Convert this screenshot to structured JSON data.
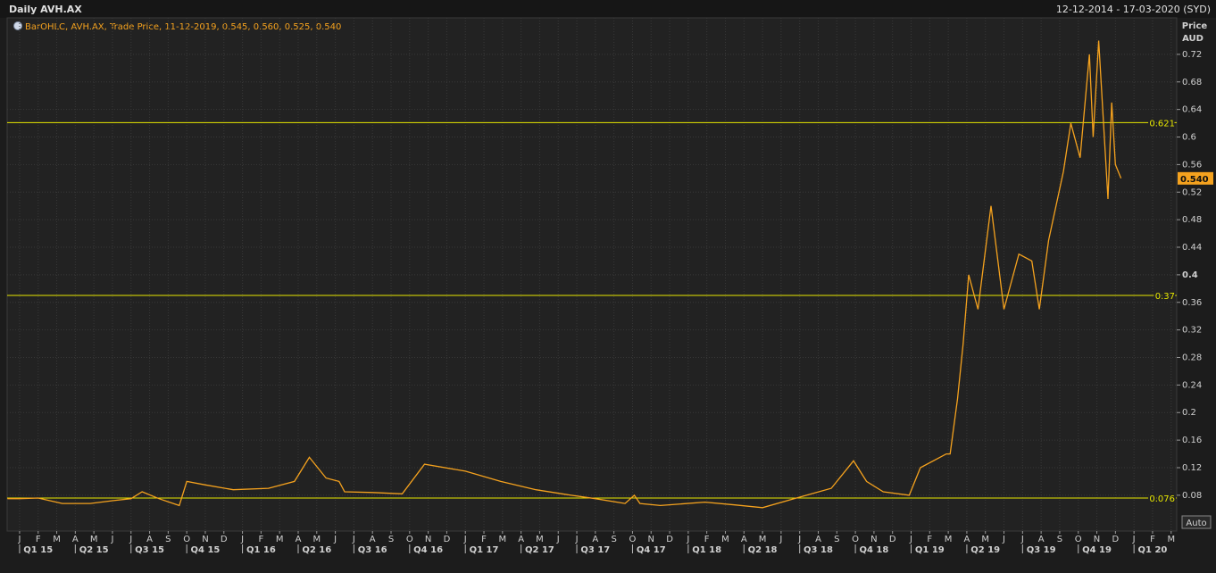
{
  "chart_data": {
    "type": "line",
    "title": "Daily AVH.AX",
    "date_range": "12-12-2014 - 17-03-2020 (SYD)",
    "y_axis_label": [
      "Price",
      "AUD"
    ],
    "series": [
      {
        "name": "BarOHLC, AVH.AX, Trade Price, 11-12-2019, 0.545, 0.560, 0.525, 0.540",
        "color": "#f5a21e",
        "x": [
          -0.65,
          0,
          1,
          2.3,
          3.8,
          5,
          6,
          6.6,
          7.5,
          8.6,
          9,
          10,
          11.5,
          13.4,
          14.8,
          15.6,
          16.5,
          17.2,
          17.5,
          19,
          20.6,
          21.8,
          24,
          25.9,
          27.8,
          29.7,
          31,
          32.6,
          33.1,
          33.4,
          34.5,
          36.9,
          38.5,
          40,
          41.7,
          43.7,
          44.9,
          45.6,
          46.5,
          47.9,
          48.5,
          49.9,
          50.1,
          50.5,
          50.8,
          51.1,
          51.6,
          52.3,
          53,
          53.8,
          54.5,
          54.9,
          55.4,
          56.2,
          56.6,
          57.1,
          57.6,
          57.8,
          58.1,
          58.6,
          58.8,
          59,
          59.3
        ],
        "values": [
          0.075,
          0.075,
          0.076,
          0.068,
          0.068,
          0.072,
          0.075,
          0.085,
          0.075,
          0.065,
          0.1,
          0.095,
          0.088,
          0.09,
          0.1,
          0.135,
          0.105,
          0.1,
          0.085,
          0.084,
          0.082,
          0.125,
          0.115,
          0.1,
          0.088,
          0.08,
          0.075,
          0.068,
          0.08,
          0.068,
          0.065,
          0.07,
          0.066,
          0.062,
          0.075,
          0.09,
          0.13,
          0.1,
          0.085,
          0.08,
          0.12,
          0.14,
          0.14,
          0.22,
          0.3,
          0.4,
          0.35,
          0.5,
          0.35,
          0.43,
          0.42,
          0.35,
          0.45,
          0.55,
          0.62,
          0.57,
          0.72,
          0.6,
          0.74,
          0.51,
          0.65,
          0.56,
          0.54
        ]
      }
    ],
    "last_price": {
      "value": 0.54,
      "label": "0.540"
    },
    "hlines": [
      0.621,
      0.37,
      0.076
    ],
    "xlim": [
      -0.67,
      62.3
    ],
    "ylim": [
      0.028,
      0.773
    ],
    "yticks": [
      0.08,
      0.12,
      0.16,
      0.2,
      0.24,
      0.28,
      0.32,
      0.36,
      0.4,
      0.44,
      0.48,
      0.52,
      0.56,
      0.6,
      0.64,
      0.68,
      0.72
    ],
    "xticks": [
      {
        "value": 0,
        "label": "J"
      },
      {
        "value": 1,
        "label": "F"
      },
      {
        "value": 2,
        "label": "M"
      },
      {
        "value": 3,
        "label": "A"
      },
      {
        "value": 4,
        "label": "M"
      },
      {
        "value": 5,
        "label": "J"
      },
      {
        "value": 6,
        "label": "J"
      },
      {
        "value": 7,
        "label": "A"
      },
      {
        "value": 8,
        "label": "S"
      },
      {
        "value": 9,
        "label": "O"
      },
      {
        "value": 10,
        "label": "N"
      },
      {
        "value": 11,
        "label": "D"
      },
      {
        "value": 12,
        "label": "J"
      },
      {
        "value": 13,
        "label": "F"
      },
      {
        "value": 14,
        "label": "M"
      },
      {
        "value": 15,
        "label": "A"
      },
      {
        "value": 16,
        "label": "M"
      },
      {
        "value": 17,
        "label": "J"
      },
      {
        "value": 18,
        "label": "J"
      },
      {
        "value": 19,
        "label": "A"
      },
      {
        "value": 20,
        "label": "S"
      },
      {
        "value": 21,
        "label": "O"
      },
      {
        "value": 22,
        "label": "N"
      },
      {
        "value": 23,
        "label": "D"
      },
      {
        "value": 24,
        "label": "J"
      },
      {
        "value": 25,
        "label": "F"
      },
      {
        "value": 26,
        "label": "M"
      },
      {
        "value": 27,
        "label": "A"
      },
      {
        "value": 28,
        "label": "M"
      },
      {
        "value": 29,
        "label": "J"
      },
      {
        "value": 30,
        "label": "J"
      },
      {
        "value": 31,
        "label": "A"
      },
      {
        "value": 32,
        "label": "S"
      },
      {
        "value": 33,
        "label": "O"
      },
      {
        "value": 34,
        "label": "N"
      },
      {
        "value": 35,
        "label": "D"
      },
      {
        "value": 36,
        "label": "J"
      },
      {
        "value": 37,
        "label": "F"
      },
      {
        "value": 38,
        "label": "M"
      },
      {
        "value": 39,
        "label": "A"
      },
      {
        "value": 40,
        "label": "M"
      },
      {
        "value": 41,
        "label": "J"
      },
      {
        "value": 42,
        "label": "J"
      },
      {
        "value": 43,
        "label": "A"
      },
      {
        "value": 44,
        "label": "S"
      },
      {
        "value": 45,
        "label": "O"
      },
      {
        "value": 46,
        "label": "N"
      },
      {
        "value": 47,
        "label": "D"
      },
      {
        "value": 48,
        "label": "J"
      },
      {
        "value": 49,
        "label": "F"
      },
      {
        "value": 50,
        "label": "M"
      },
      {
        "value": 51,
        "label": "A"
      },
      {
        "value": 52,
        "label": "M"
      },
      {
        "value": 53,
        "label": "J"
      },
      {
        "value": 54,
        "label": "J"
      },
      {
        "value": 55,
        "label": "A"
      },
      {
        "value": 56,
        "label": "S"
      },
      {
        "value": 57,
        "label": "O"
      },
      {
        "value": 58,
        "label": "N"
      },
      {
        "value": 59,
        "label": "D"
      },
      {
        "value": 60,
        "label": "J"
      },
      {
        "value": 61,
        "label": "F"
      },
      {
        "value": 62,
        "label": "M"
      }
    ],
    "quarters": [
      {
        "value": 0,
        "label": "Q1 15"
      },
      {
        "value": 3,
        "label": "Q2 15"
      },
      {
        "value": 6,
        "label": "Q3 15"
      },
      {
        "value": 9,
        "label": "Q4 15"
      },
      {
        "value": 12,
        "label": "Q1 16"
      },
      {
        "value": 15,
        "label": "Q2 16"
      },
      {
        "value": 18,
        "label": "Q3 16"
      },
      {
        "value": 21,
        "label": "Q4 16"
      },
      {
        "value": 24,
        "label": "Q1 17"
      },
      {
        "value": 27,
        "label": "Q2 17"
      },
      {
        "value": 30,
        "label": "Q3 17"
      },
      {
        "value": 33,
        "label": "Q4 17"
      },
      {
        "value": 36,
        "label": "Q1 18"
      },
      {
        "value": 39,
        "label": "Q2 18"
      },
      {
        "value": 42,
        "label": "Q3 18"
      },
      {
        "value": 45,
        "label": "Q4 18"
      },
      {
        "value": 48,
        "label": "Q1 19"
      },
      {
        "value": 51,
        "label": "Q2 19"
      },
      {
        "value": 54,
        "label": "Q3 19"
      },
      {
        "value": 57,
        "label": "Q4 19"
      },
      {
        "value": 60,
        "label": "Q1 20"
      }
    ],
    "grid": true,
    "hline_color": "#e8e800"
  },
  "ui": {
    "auto_button": "Auto"
  }
}
